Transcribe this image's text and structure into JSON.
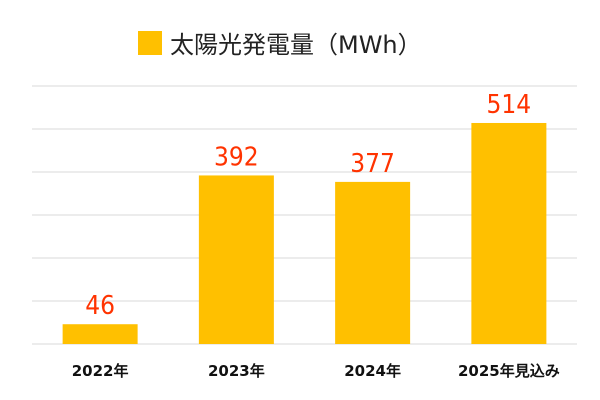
{
  "chart_data": {
    "type": "bar",
    "title": "",
    "legend": {
      "entries": [
        "太陽光発電量（MWh）"
      ],
      "placement": "top"
    },
    "categories": [
      "2022年",
      "2023年",
      "2024年",
      "2025年見込み"
    ],
    "series": [
      {
        "name": "太陽光発電量（MWh）",
        "values": [
          46,
          392,
          377,
          514
        ]
      }
    ],
    "data_labels": [
      "46",
      "392",
      "377",
      "514"
    ],
    "xlabel": "",
    "ylabel": "",
    "ylim": [
      0,
      600
    ],
    "y_gridline_step": 100,
    "grid": true,
    "y_axis_labels_visible": false,
    "colors": {
      "bar": "#ffc000",
      "data_label": "#ff3300",
      "grid": "#d9d9d9"
    }
  }
}
